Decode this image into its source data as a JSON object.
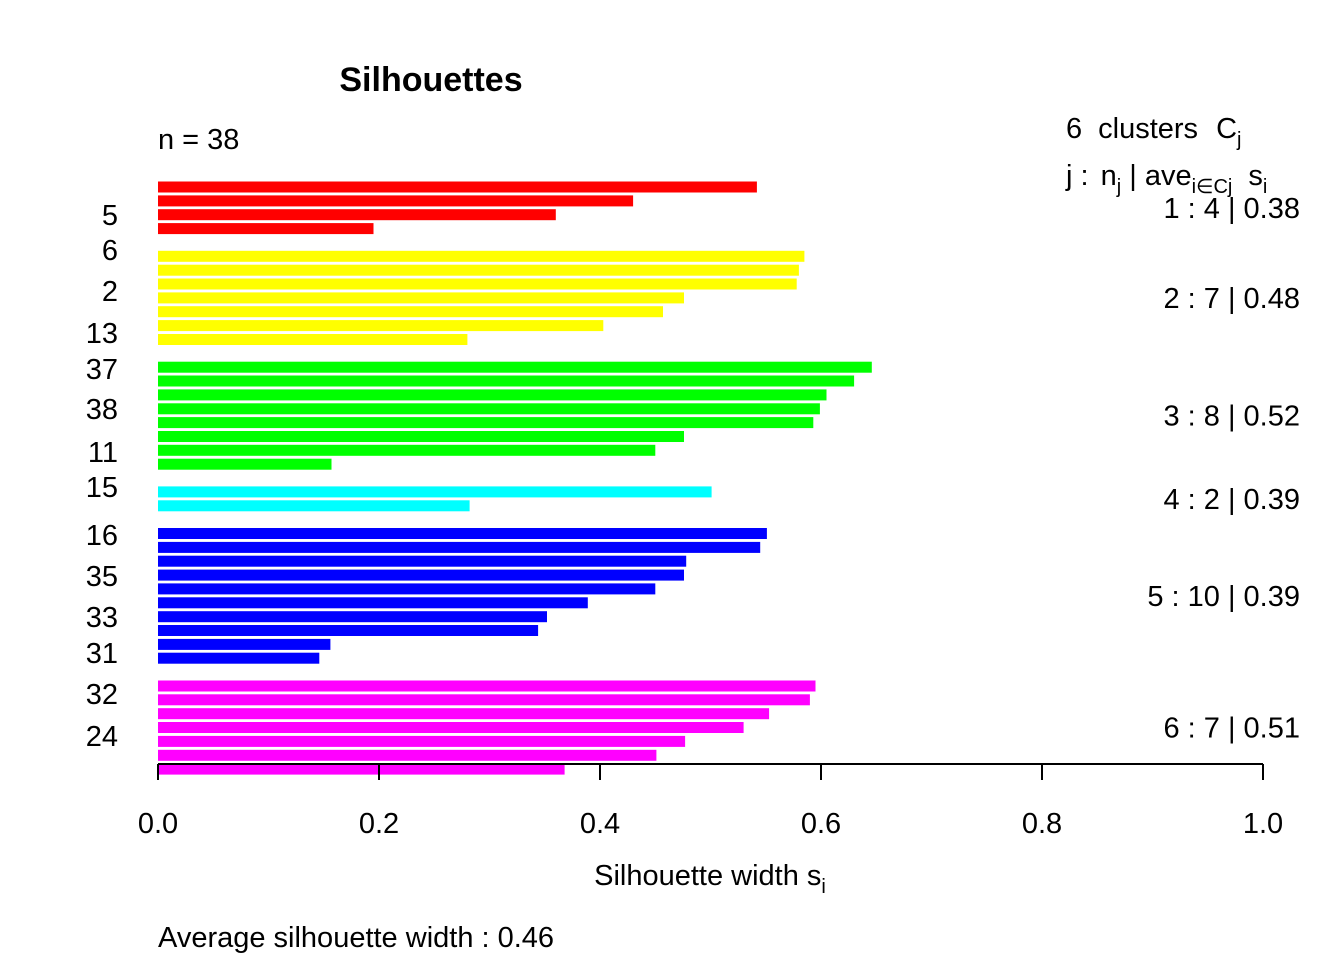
{
  "chart_data": {
    "type": "bar",
    "orientation": "horizontal",
    "title": "Silhouettes",
    "n_label": "n = 38",
    "legend_header": {
      "count": "6",
      "word": "clusters",
      "C": "C",
      "C_sub": "j",
      "j_label": "j :",
      "n": "n",
      "n_sub": "j",
      "bar": " | ",
      "ave": "ave",
      "ave_sub": "i∈Cj",
      "s": "s",
      "s_sub": "i"
    },
    "xlabel": "Silhouette width s",
    "xlabel_sub": "i",
    "footer": "Average silhouette width :  0.46",
    "xlim": [
      0,
      1
    ],
    "xticks": [
      "0.0",
      "0.2",
      "0.4",
      "0.6",
      "0.8",
      "1.0"
    ],
    "y_labels_shown": [
      "5",
      "6",
      "2",
      "13",
      "37",
      "38",
      "11",
      "15",
      "16",
      "35",
      "33",
      "31",
      "32",
      "24"
    ],
    "clusters": [
      {
        "id": 1,
        "color": "#FF0000",
        "summary": "1 :   4  |  0.38",
        "values": [
          0.542,
          0.43,
          0.36,
          0.195
        ]
      },
      {
        "id": 2,
        "color": "#FFFF00",
        "summary": "2 :   7  |  0.48",
        "values": [
          0.585,
          0.58,
          0.578,
          0.476,
          0.457,
          0.403,
          0.28
        ]
      },
      {
        "id": 3,
        "color": "#00FF00",
        "summary": "3 :   8  |  0.52",
        "values": [
          0.646,
          0.63,
          0.605,
          0.599,
          0.593,
          0.476,
          0.45,
          0.157
        ]
      },
      {
        "id": 4,
        "color": "#00FFFF",
        "summary": "4 :   2  |  0.39",
        "values": [
          0.501,
          0.282
        ]
      },
      {
        "id": 5,
        "color": "#0000FF",
        "summary": "5 :   10  |  0.39",
        "values": [
          0.551,
          0.545,
          0.478,
          0.476,
          0.45,
          0.389,
          0.352,
          0.344,
          0.156,
          0.146
        ]
      },
      {
        "id": 6,
        "color": "#FF00FF",
        "summary": "6 :   7  |  0.51",
        "values": [
          0.595,
          0.59,
          0.553,
          0.53,
          0.477,
          0.451,
          0.368
        ]
      }
    ]
  }
}
